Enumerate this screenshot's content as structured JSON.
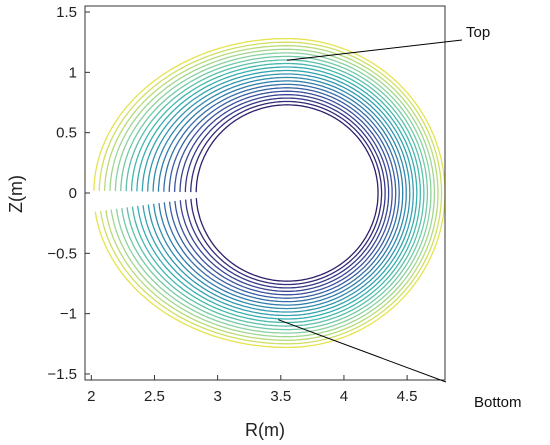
{
  "chart_data": {
    "type": "contour",
    "xlabel": "R(m)",
    "ylabel": "Z(m)",
    "xlim": [
      1.95,
      4.8
    ],
    "ylim": [
      -1.55,
      1.55
    ],
    "xticks": [
      2,
      2.5,
      3,
      3.5,
      4,
      4.5
    ],
    "xtick_labels": [
      "2",
      "2.5",
      "3",
      "3.5",
      "4",
      "4.5"
    ],
    "yticks": [
      -1.5,
      -1,
      -0.5,
      0,
      0.5,
      1,
      1.5
    ],
    "ytick_labels": [
      "−1.5",
      "−1",
      "−0.5",
      "0",
      "0.5",
      "1",
      "1.5"
    ],
    "grid": false,
    "contours": {
      "count": 20,
      "center": [
        3.55,
        0
      ],
      "inner": {
        "a": 0.72,
        "kappa": 1.18
      },
      "outer": {
        "a": 1.22,
        "kappa": 1.22,
        "r_right": 4.8,
        "r_left": 2.02
      },
      "gap": {
        "z_top": 0.02,
        "z_bottom": -0.17,
        "r_end": 2.92
      },
      "colormap": [
        "#2f1f6b",
        "#3e4f9e",
        "#2f86ad",
        "#37b3b0",
        "#8fd3a0",
        "#e6e34d"
      ]
    },
    "annotations": [
      {
        "text": "Top",
        "point": [
          3.55,
          1.1
        ]
      },
      {
        "text": "Bottom",
        "point": [
          3.48,
          -1.05
        ]
      }
    ]
  }
}
